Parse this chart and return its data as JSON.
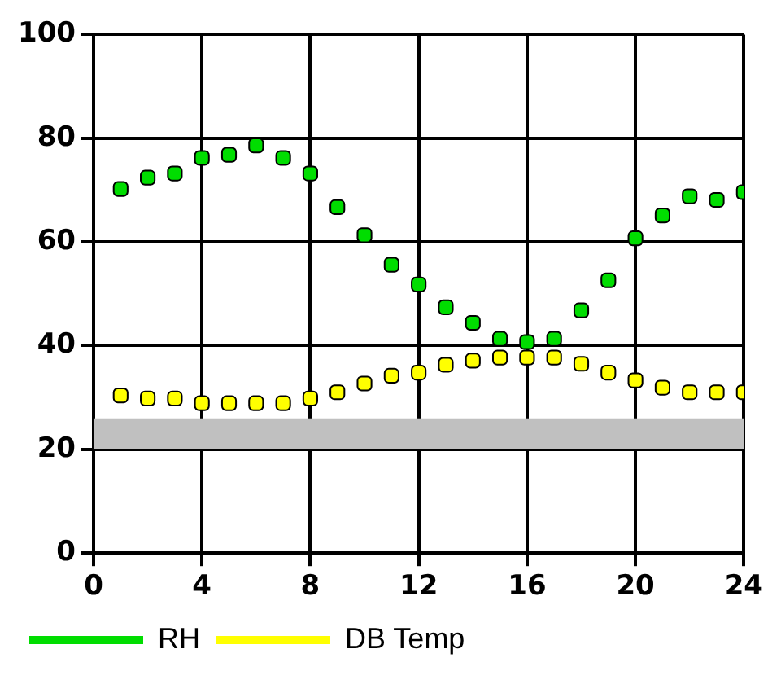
{
  "chart_data": {
    "type": "scatter",
    "x": [
      1,
      2,
      3,
      4,
      5,
      6,
      7,
      8,
      9,
      10,
      11,
      12,
      13,
      14,
      15,
      16,
      17,
      18,
      19,
      20,
      21,
      22,
      23,
      24
    ],
    "series": [
      {
        "name": "RH",
        "color": "#00dd00",
        "values": [
          70.2,
          72.4,
          73.2,
          76.2,
          76.8,
          78.6,
          76.2,
          73.2,
          66.7,
          61.3,
          55.6,
          51.8,
          47.4,
          44.4,
          41.3,
          40.7,
          41.3,
          46.8,
          52.6,
          60.7,
          65.1,
          68.8,
          68.1,
          69.6
        ]
      },
      {
        "name": "DB Temp",
        "color": "#ffff00",
        "values": [
          30.4,
          29.8,
          29.8,
          28.9,
          28.9,
          28.9,
          28.9,
          29.8,
          31,
          32.7,
          34.2,
          34.8,
          36.3,
          37.1,
          37.7,
          37.7,
          37.7,
          36.5,
          34.8,
          33.3,
          31.9,
          31,
          31,
          31
        ]
      }
    ],
    "xlim": [
      0,
      24
    ],
    "xticks": [
      0,
      4,
      8,
      12,
      16,
      20,
      24
    ],
    "ylim": [
      0,
      100
    ],
    "yticks": [
      0,
      20,
      40,
      60,
      80,
      100
    ],
    "bands": [
      {
        "axis": "y",
        "from": 20,
        "to": 26,
        "color": "#c0c0c0"
      }
    ],
    "grid": true,
    "legend": "bottom",
    "marker": "square"
  }
}
